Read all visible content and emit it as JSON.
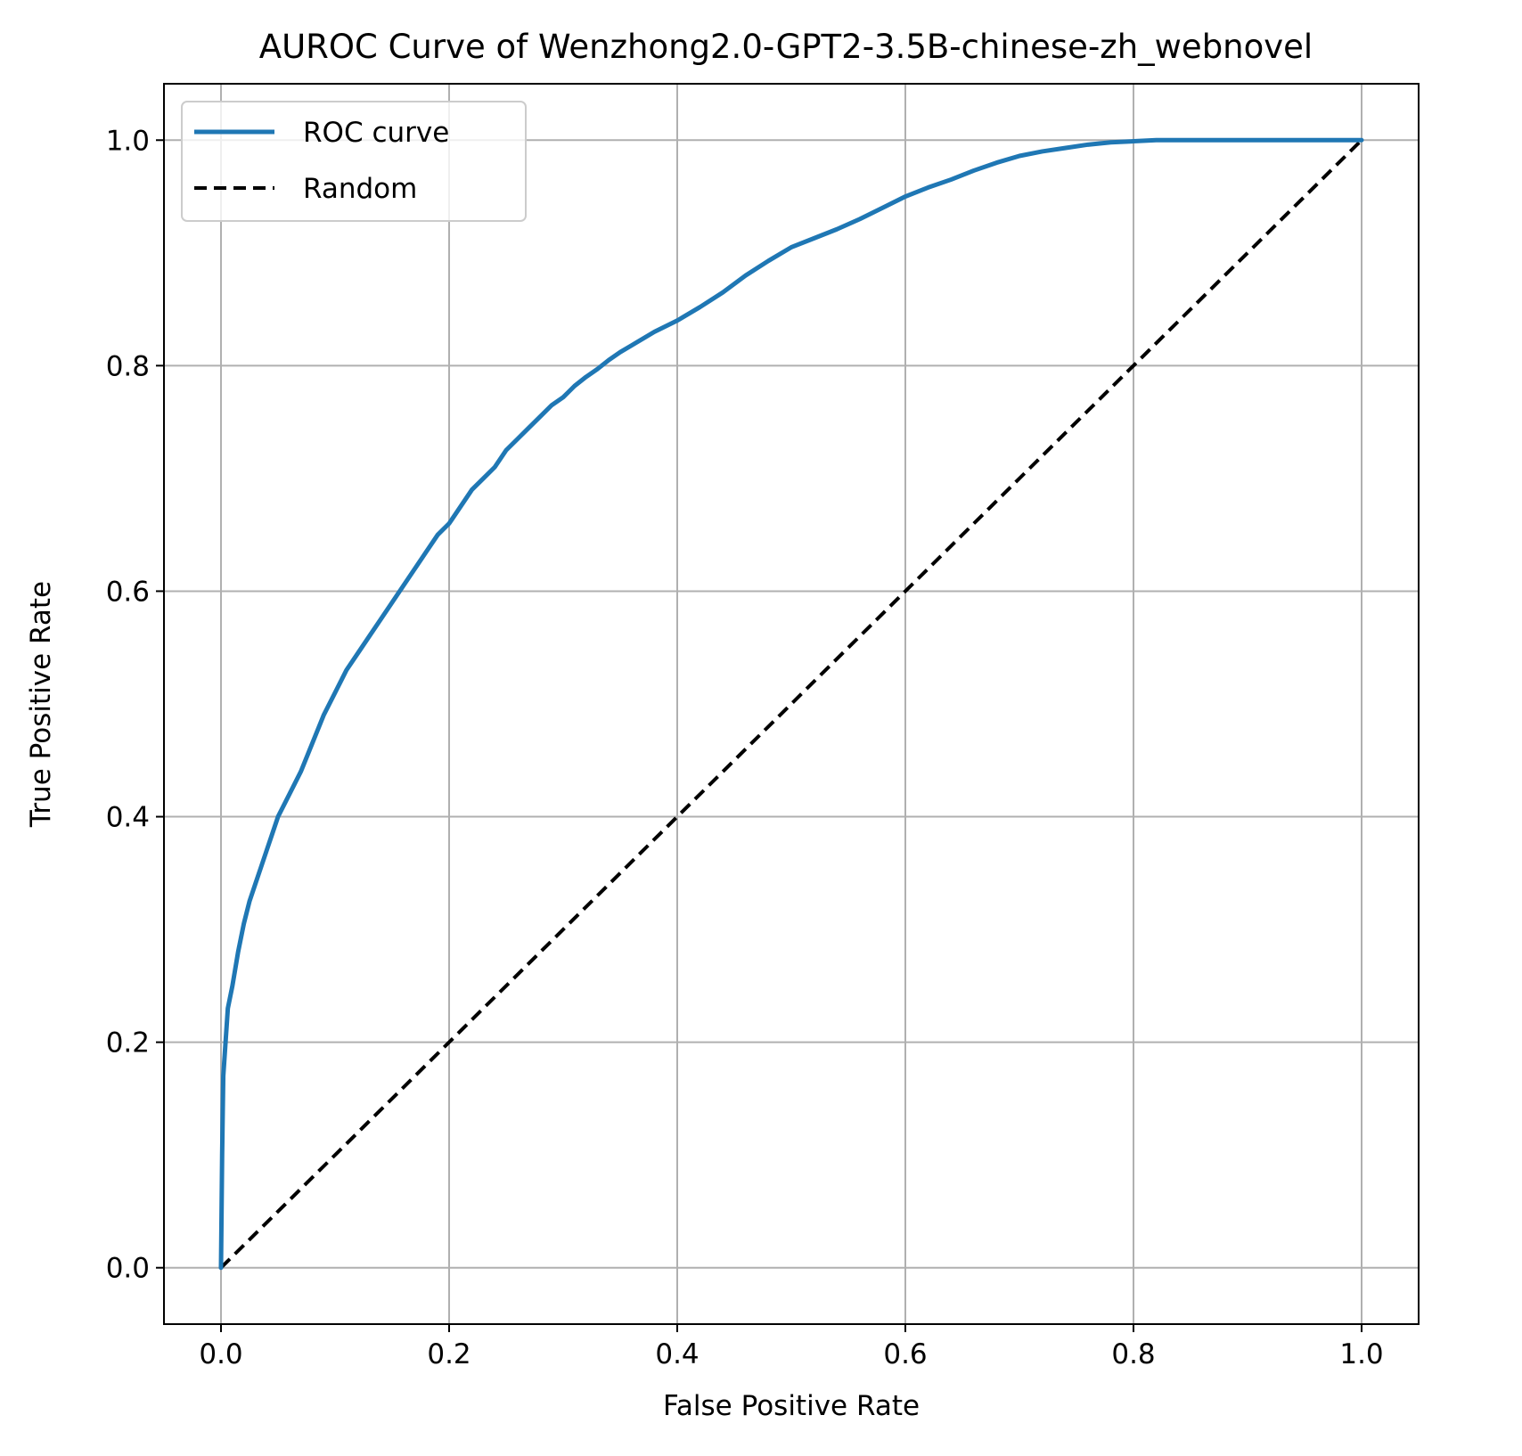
{
  "chart_data": {
    "type": "line",
    "title": "AUROC Curve of Wenzhong2.0-GPT2-3.5B-chinese-zh_webnovel",
    "xlabel": "False Positive Rate",
    "ylabel": "True Positive Rate",
    "xlim": [
      -0.05,
      1.05
    ],
    "ylim": [
      -0.05,
      1.05
    ],
    "xticks": [
      0.0,
      0.2,
      0.4,
      0.6,
      0.8,
      1.0
    ],
    "yticks": [
      0.0,
      0.2,
      0.4,
      0.6,
      0.8,
      1.0
    ],
    "xtick_labels": [
      "0.0",
      "0.2",
      "0.4",
      "0.6",
      "0.8",
      "1.0"
    ],
    "ytick_labels": [
      "0.0",
      "0.2",
      "0.4",
      "0.6",
      "0.8",
      "1.0"
    ],
    "grid": true,
    "legend_position": "upper-left",
    "series": [
      {
        "name": "ROC curve",
        "style": "solid",
        "color": "#1f77b4",
        "x": [
          0.0,
          0.001,
          0.002,
          0.004,
          0.006,
          0.01,
          0.015,
          0.02,
          0.025,
          0.03,
          0.035,
          0.04,
          0.045,
          0.05,
          0.055,
          0.06,
          0.07,
          0.08,
          0.09,
          0.1,
          0.11,
          0.12,
          0.13,
          0.14,
          0.15,
          0.16,
          0.17,
          0.18,
          0.19,
          0.2,
          0.21,
          0.22,
          0.23,
          0.24,
          0.25,
          0.26,
          0.27,
          0.28,
          0.29,
          0.3,
          0.31,
          0.32,
          0.33,
          0.34,
          0.35,
          0.36,
          0.38,
          0.4,
          0.42,
          0.44,
          0.46,
          0.48,
          0.5,
          0.52,
          0.54,
          0.56,
          0.58,
          0.6,
          0.62,
          0.64,
          0.66,
          0.68,
          0.7,
          0.72,
          0.74,
          0.76,
          0.78,
          0.8,
          0.82,
          0.85,
          0.9,
          0.95,
          1.0
        ],
        "y": [
          0.0,
          0.1,
          0.17,
          0.2,
          0.23,
          0.25,
          0.28,
          0.305,
          0.325,
          0.34,
          0.355,
          0.37,
          0.385,
          0.4,
          0.41,
          0.42,
          0.44,
          0.465,
          0.49,
          0.51,
          0.53,
          0.545,
          0.56,
          0.575,
          0.59,
          0.605,
          0.62,
          0.635,
          0.65,
          0.66,
          0.675,
          0.69,
          0.7,
          0.71,
          0.725,
          0.735,
          0.745,
          0.755,
          0.765,
          0.772,
          0.782,
          0.79,
          0.797,
          0.805,
          0.812,
          0.818,
          0.83,
          0.84,
          0.852,
          0.865,
          0.88,
          0.893,
          0.905,
          0.913,
          0.921,
          0.93,
          0.94,
          0.95,
          0.958,
          0.965,
          0.973,
          0.98,
          0.986,
          0.99,
          0.993,
          0.996,
          0.998,
          0.999,
          1.0,
          1.0,
          1.0,
          1.0,
          1.0
        ]
      },
      {
        "name": "Random",
        "style": "dashed",
        "color": "#000000",
        "x": [
          0.0,
          1.0
        ],
        "y": [
          0.0,
          1.0
        ]
      }
    ]
  }
}
